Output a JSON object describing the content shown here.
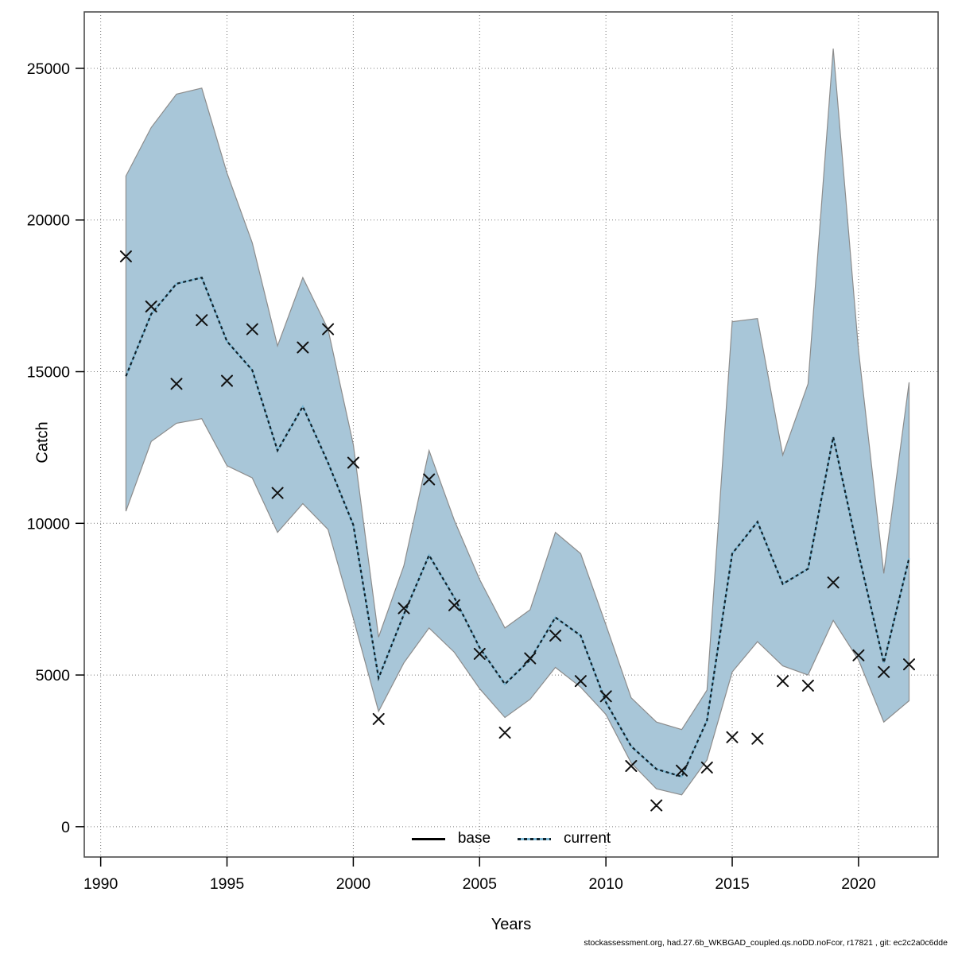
{
  "chart_data": {
    "type": "line",
    "title": "",
    "xlabel": "Years",
    "ylabel": "Catch",
    "grid": true,
    "xlim": [
      1989.35,
      2023.15
    ],
    "ylim": [
      -1000,
      26860
    ],
    "x_ticks": [
      1990,
      1995,
      2000,
      2005,
      2010,
      2015,
      2020
    ],
    "y_ticks": [
      0,
      5000,
      10000,
      15000,
      20000,
      25000
    ],
    "x": [
      1991,
      1992,
      1993,
      1994,
      1995,
      1996,
      1997,
      1998,
      1999,
      2000,
      2001,
      2002,
      2003,
      2004,
      2005,
      2006,
      2007,
      2008,
      2009,
      2010,
      2011,
      2012,
      2013,
      2014,
      2015,
      2016,
      2017,
      2018,
      2019,
      2020,
      2021,
      2022
    ],
    "series": [
      {
        "name": "observed-catch",
        "marker": "x",
        "color": "#111111",
        "values": [
          18800,
          17150,
          14600,
          16700,
          14700,
          16400,
          11000,
          15800,
          16400,
          12000,
          3550,
          7200,
          11450,
          7300,
          5700,
          3100,
          5550,
          6300,
          4800,
          4300,
          2000,
          700,
          1850,
          1950,
          2950,
          2900,
          4800,
          4650,
          8050,
          5650,
          5100,
          5350
        ]
      },
      {
        "name": "current-estimate",
        "style": "dashed",
        "color_dash": "#10222b",
        "color_underlay": "#7ab6d3",
        "values": [
          14850,
          16900,
          17900,
          18100,
          16000,
          15050,
          12400,
          13850,
          12000,
          9950,
          4900,
          7000,
          8950,
          7550,
          5900,
          4700,
          5500,
          6900,
          6300,
          4100,
          2650,
          1900,
          1650,
          3500,
          9000,
          10050,
          8000,
          8500,
          12850,
          9000,
          5400,
          8850
        ]
      },
      {
        "name": "ci-lower",
        "color": "#a8c6d8",
        "values": [
          10400,
          12700,
          13300,
          13450,
          11900,
          11500,
          9700,
          10650,
          9800,
          6870,
          3800,
          5400,
          6550,
          5750,
          4550,
          3600,
          4200,
          5250,
          4600,
          3700,
          2100,
          1250,
          1050,
          2200,
          5100,
          6100,
          5300,
          5000,
          6800,
          5500,
          3450,
          4150
        ]
      },
      {
        "name": "ci-upper",
        "color": "#a8c6d8",
        "values": [
          21450,
          23050,
          24150,
          24350,
          21550,
          19250,
          15850,
          18100,
          16400,
          12600,
          6250,
          8600,
          12400,
          10100,
          8150,
          6550,
          7150,
          9700,
          9000,
          6650,
          4250,
          3450,
          3200,
          4500,
          16650,
          16750,
          12250,
          14600,
          25650,
          15700,
          8350,
          14650
        ]
      }
    ],
    "legend": {
      "position": "bottom-center-inside",
      "items": [
        {
          "label": "base",
          "style": "solid"
        },
        {
          "label": "current",
          "style": "dashed"
        }
      ]
    },
    "colors": {
      "band_fill": "#a8c6d8",
      "band_edge": "#8c8c8c",
      "grid": "#7a7a7a",
      "plot_border": "#4d4d4d",
      "text": "#000000"
    }
  },
  "footer": {
    "text": "stockassessment.org, had.27.6b_WKBGAD_coupled.qs.noDD.noFcor, r17821 , git: ec2c2a0c6dde"
  }
}
